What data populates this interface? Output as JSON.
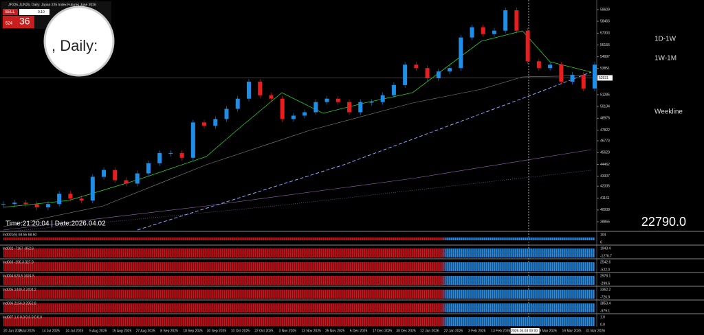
{
  "header": {
    "symbol": "JP225-JUN26, Daily:  Japan 225 Index Futures June 2026",
    "sell": "SELL",
    "lot": "0.10",
    "price_small": "524",
    "price_big": "36",
    "magnifier": ", Daily:"
  },
  "chart_data": {
    "type": "candlestick",
    "closes": [
      40590,
      40723,
      40590,
      40258,
      40590,
      41588,
      41122,
      40922,
      43250,
      43915,
      42917,
      42585,
      43583,
      44580,
      45577,
      45577,
      45112,
      48570,
      48237,
      48903,
      49900,
      50898,
      52560,
      51230,
      50898,
      48903,
      49235,
      49568,
      50565,
      50898,
      50565,
      49568,
      50565,
      50565,
      51230,
      52228,
      54222,
      53890,
      52893,
      53558,
      53890,
      56882,
      57880,
      57215,
      57548,
      59543,
      57548,
      54555,
      53890,
      54222,
      52560,
      53225,
      51895,
      54222
    ],
    "ylim": [
      38855,
      59609
    ],
    "yticks": [
      59609,
      58466,
      57303,
      56155,
      54997,
      53851,
      51285,
      50134,
      48976,
      47822,
      46773,
      45620,
      44462,
      43307,
      42335,
      41161,
      40008,
      38855
    ],
    "current_price": 52931,
    "up_color": "#1e8fe8",
    "down_color": "#e81e1e",
    "dates": [
      "20 Jun 2025",
      "2 Jul 2025",
      "14 Jul 2025",
      "24 Jul 2025",
      "5 Aug 2025",
      "15 Aug 2025",
      "27 Aug 2025",
      "8 Sep 2025",
      "18 Sep 2025",
      "30 Sep 2025",
      "10 Oct 2025",
      "22 Oct 2025",
      "3 Nov 2025",
      "13 Nov 2025",
      "25 Nov 2025",
      "5 Dec 2025",
      "17 Dec 2025",
      "30 Dec 2025",
      "12 Jan 2026",
      "22 Jan 2026",
      "3 Feb 2026",
      "13 Feb 2026",
      "2026.03.03 00:00",
      "9 Mar 2026",
      "19 Mar 2026",
      "31 Mar 2026"
    ]
  },
  "lines": [
    "1D-1W",
    "1W-1M",
    "Weekline"
  ],
  "status": {
    "time": "Time:21:20:04 | Date:2026.04.02",
    "big_value": "22790.0"
  },
  "indicators": [
    {
      "label": "Ind001(5) 68.55 68.50",
      "top": "104",
      "bottom": "6"
    },
    {
      "label": "Ind002 -7167 -952.6",
      "top": "1943.4",
      "bottom": "-1276.7"
    },
    {
      "label": "Ind003 -256.3 327.9",
      "top": "2542.6",
      "bottom": "-522.0"
    },
    {
      "label": "Ind004 620.5 1624.5",
      "top": "2978.1",
      "bottom": "-299.6"
    },
    {
      "label": "Ind005 1449.3 2404.2",
      "top": "3362.2",
      "bottom": "-726.9"
    },
    {
      "label": "Ind006 2156.8 2952.8",
      "top": "3853.4",
      "bottom": "-979.1"
    },
    {
      "label": "Ind007 1.0 0.0 0.0 0.0 0.0",
      "top": "1.0",
      "bottom": "0.0"
    }
  ]
}
